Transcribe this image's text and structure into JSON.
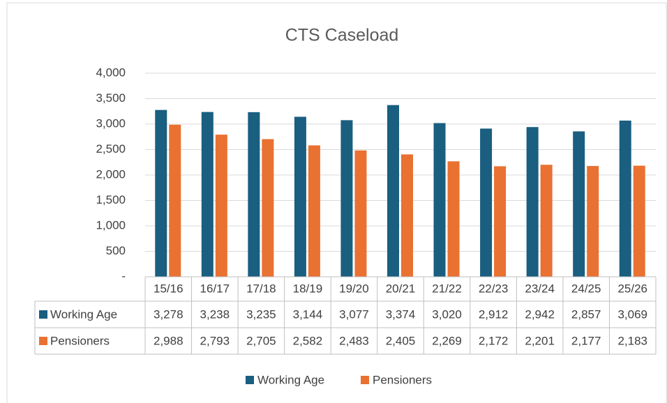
{
  "chart_data": {
    "type": "bar",
    "title": "CTS Caseload",
    "categories": [
      "15/16",
      "16/17",
      "17/18",
      "18/19",
      "19/20",
      "20/21",
      "21/22",
      "22/23",
      "23/24",
      "24/25",
      "25/26"
    ],
    "series": [
      {
        "name": "Working Age",
        "color": "#1a5e80",
        "values": [
          3278,
          3238,
          3235,
          3144,
          3077,
          3374,
          3020,
          2912,
          2942,
          2857,
          3069
        ],
        "value_labels": [
          "3,278",
          "3,238",
          "3,235",
          "3,144",
          "3,077",
          "3,374",
          "3,020",
          "2,912",
          "2,942",
          "2,857",
          "3,069"
        ]
      },
      {
        "name": "Pensioners",
        "color": "#e97132",
        "values": [
          2988,
          2793,
          2705,
          2582,
          2483,
          2405,
          2269,
          2172,
          2201,
          2177,
          2183
        ],
        "value_labels": [
          "2,988",
          "2,793",
          "2,705",
          "2,582",
          "2,483",
          "2,405",
          "2,269",
          "2,172",
          "2,201",
          "2,177",
          "2,183"
        ]
      }
    ],
    "ylim": [
      0,
      4000
    ],
    "yticks": [
      {
        "value": 0,
        "label": "-"
      },
      500,
      {
        "value": 1000,
        "label": "1,000"
      },
      {
        "value": 1500,
        "label": "1,500"
      },
      {
        "value": 2000,
        "label": "2,000"
      },
      {
        "value": 2500,
        "label": "2,500"
      },
      {
        "value": 3000,
        "label": "3,000"
      },
      {
        "value": 3500,
        "label": "3,500"
      },
      {
        "value": 4000,
        "label": "4,000"
      }
    ],
    "grid": true,
    "legend": "bottom"
  }
}
